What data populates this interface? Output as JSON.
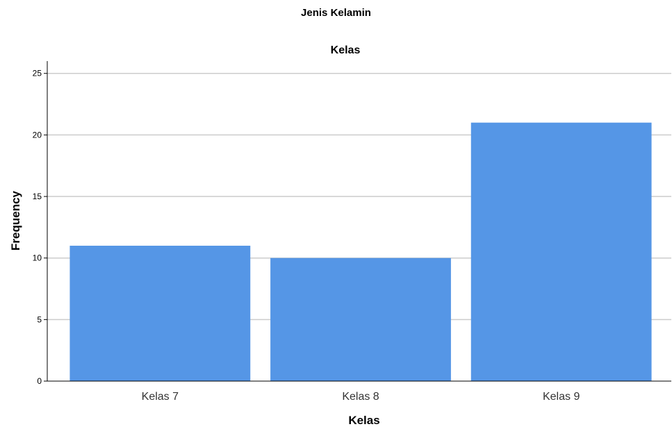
{
  "page": {
    "supertitle": "Jenis Kelamin"
  },
  "chart_data": {
    "type": "bar",
    "title": "Kelas",
    "xlabel": "Kelas",
    "ylabel": "Frequency",
    "categories": [
      "Kelas 7",
      "Kelas 8",
      "Kelas 9"
    ],
    "values": [
      11,
      10,
      21
    ],
    "ylim": [
      0,
      26
    ],
    "yticks": [
      0,
      5,
      10,
      15,
      20,
      25
    ],
    "grid": true,
    "bar_color": "#5596e6",
    "grid_color": "#cccccc",
    "axis_color": "#000000"
  }
}
